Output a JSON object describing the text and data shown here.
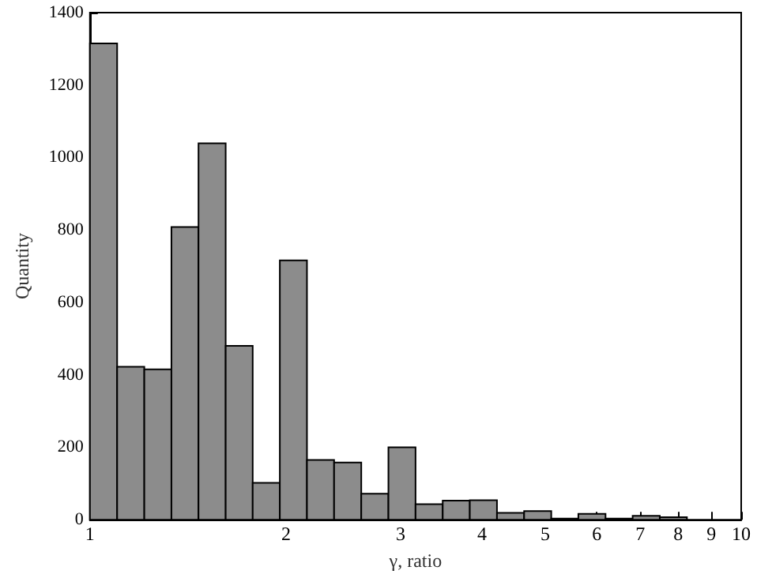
{
  "chart_data": {
    "type": "histogram",
    "xlabel": "γ, ratio",
    "ylabel": "Quantity",
    "log": "x",
    "color": "#8c8c8c",
    "bins": [
      1,
      1.101,
      1.212,
      1.334,
      1.468,
      1.616,
      1.778,
      1.957,
      2.154,
      2.371,
      2.61,
      2.873,
      3.162,
      3.481,
      3.831,
      4.217,
      4.642,
      5.109,
      5.623,
      6.19,
      6.813,
      7.499,
      8.254
    ],
    "values": [
      1315,
      422,
      415,
      808,
      1039,
      480,
      102,
      716,
      165,
      158,
      72,
      200,
      43,
      53,
      54,
      19,
      24,
      3,
      16,
      3,
      11,
      7
    ],
    "xlim": [
      1,
      10
    ],
    "xticks": [
      1,
      2,
      3,
      4,
      5,
      6,
      7,
      8,
      9,
      10
    ],
    "ylim": [
      0,
      1400
    ],
    "yticks": [
      0,
      200,
      400,
      600,
      800,
      1000,
      1200,
      1400
    ],
    "grid": false
  }
}
